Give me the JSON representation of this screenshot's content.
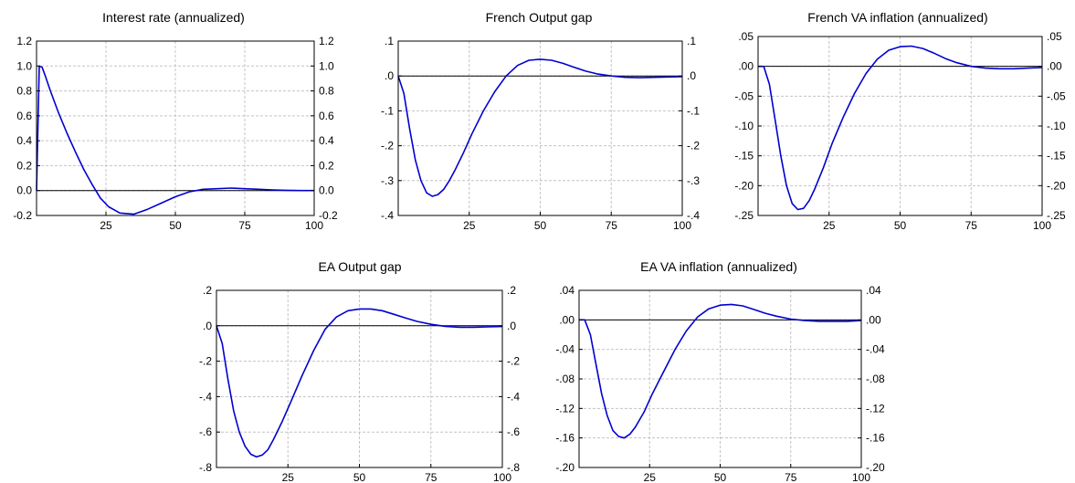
{
  "chart_data": [
    {
      "type": "line",
      "title": "Interest rate (annualized)",
      "xlim": [
        0,
        100
      ],
      "ylim": [
        -0.2,
        1.2
      ],
      "xticks": [
        25,
        50,
        75,
        100
      ],
      "xtick_labels": [
        "25",
        "50",
        "75",
        "100"
      ],
      "yticks": [
        -0.2,
        0.0,
        0.2,
        0.4,
        0.6,
        0.8,
        1.0,
        1.2
      ],
      "ytick_labels": [
        "-0.2",
        "0.0",
        "0.2",
        "0.4",
        "0.6",
        "0.8",
        "1.0",
        "1.2"
      ],
      "grid": true,
      "zero_line": true,
      "line_color": "#0000d0",
      "x": [
        0,
        1,
        2,
        3,
        5,
        8,
        11,
        14,
        17,
        20,
        23,
        26,
        30,
        35,
        40,
        45,
        50,
        55,
        60,
        65,
        70,
        75,
        80,
        85,
        90,
        95,
        100
      ],
      "y": [
        0.0,
        1.0,
        0.99,
        0.93,
        0.8,
        0.62,
        0.46,
        0.31,
        0.17,
        0.05,
        -0.06,
        -0.13,
        -0.18,
        -0.19,
        -0.15,
        -0.1,
        -0.05,
        -0.01,
        0.01,
        0.015,
        0.02,
        0.015,
        0.01,
        0.005,
        0.002,
        0.0,
        0.0
      ]
    },
    {
      "type": "line",
      "title": "French Output gap",
      "xlim": [
        0,
        100
      ],
      "ylim": [
        -0.4,
        0.1
      ],
      "xticks": [
        25,
        50,
        75,
        100
      ],
      "xtick_labels": [
        "25",
        "50",
        "75",
        "100"
      ],
      "yticks": [
        -0.4,
        -0.3,
        -0.2,
        -0.1,
        0.0,
        0.1
      ],
      "ytick_labels": [
        "-.4",
        "-.3",
        "-.2",
        "-.1",
        ".0",
        ".1"
      ],
      "grid": true,
      "zero_line": true,
      "line_color": "#0000d0",
      "x": [
        0,
        2,
        4,
        6,
        8,
        10,
        12,
        14,
        16,
        18,
        20,
        23,
        26,
        30,
        34,
        38,
        42,
        46,
        50,
        54,
        58,
        62,
        66,
        70,
        75,
        80,
        85,
        90,
        95,
        100
      ],
      "y": [
        0.0,
        -0.05,
        -0.15,
        -0.24,
        -0.3,
        -0.335,
        -0.345,
        -0.34,
        -0.325,
        -0.3,
        -0.27,
        -0.22,
        -0.165,
        -0.1,
        -0.045,
        0.0,
        0.03,
        0.045,
        0.048,
        0.045,
        0.036,
        0.025,
        0.014,
        0.006,
        0.0,
        -0.004,
        -0.005,
        -0.004,
        -0.003,
        -0.002
      ]
    },
    {
      "type": "line",
      "title": "French VA inflation (annualized)",
      "xlim": [
        0,
        100
      ],
      "ylim": [
        -0.25,
        0.05
      ],
      "xticks": [
        25,
        50,
        75,
        100
      ],
      "xtick_labels": [
        "25",
        "50",
        "75",
        "100"
      ],
      "yticks": [
        -0.25,
        -0.2,
        -0.15,
        -0.1,
        -0.05,
        0.0,
        0.05
      ],
      "ytick_labels": [
        "-.25",
        "-.20",
        "-.15",
        "-.10",
        "-.05",
        ".00",
        ".05"
      ],
      "grid": true,
      "zero_line": true,
      "line_color": "#0000d0",
      "x": [
        0,
        2,
        4,
        6,
        8,
        10,
        12,
        14,
        16,
        18,
        20,
        23,
        26,
        30,
        34,
        38,
        42,
        46,
        50,
        54,
        58,
        62,
        66,
        70,
        75,
        80,
        85,
        90,
        95,
        100
      ],
      "y": [
        0.0,
        0.0,
        -0.03,
        -0.09,
        -0.15,
        -0.2,
        -0.23,
        -0.24,
        -0.238,
        -0.225,
        -0.205,
        -0.17,
        -0.13,
        -0.085,
        -0.045,
        -0.012,
        0.012,
        0.027,
        0.033,
        0.034,
        0.03,
        0.022,
        0.013,
        0.006,
        0.0,
        -0.003,
        -0.004,
        -0.004,
        -0.003,
        -0.002
      ]
    },
    {
      "type": "line",
      "title": "EA Output gap",
      "xlim": [
        0,
        100
      ],
      "ylim": [
        -0.8,
        0.2
      ],
      "xticks": [
        25,
        50,
        75,
        100
      ],
      "xtick_labels": [
        "25",
        "50",
        "75",
        "100"
      ],
      "yticks": [
        -0.8,
        -0.6,
        -0.4,
        -0.2,
        0.0,
        0.2
      ],
      "ytick_labels": [
        "-.8",
        "-.6",
        "-.4",
        "-.2",
        ".0",
        ".2"
      ],
      "grid": true,
      "zero_line": true,
      "line_color": "#0000d0",
      "x": [
        0,
        2,
        4,
        6,
        8,
        10,
        12,
        14,
        16,
        18,
        20,
        23,
        26,
        30,
        34,
        38,
        42,
        46,
        50,
        54,
        58,
        62,
        66,
        70,
        75,
        80,
        85,
        90,
        95,
        100
      ],
      "y": [
        0.0,
        -0.1,
        -0.3,
        -0.48,
        -0.6,
        -0.68,
        -0.725,
        -0.74,
        -0.73,
        -0.7,
        -0.64,
        -0.54,
        -0.43,
        -0.28,
        -0.14,
        -0.02,
        0.05,
        0.085,
        0.095,
        0.095,
        0.085,
        0.065,
        0.045,
        0.025,
        0.008,
        -0.003,
        -0.008,
        -0.008,
        -0.006,
        -0.004
      ]
    },
    {
      "type": "line",
      "title": "EA VA inflation (annualized)",
      "xlim": [
        0,
        100
      ],
      "ylim": [
        -0.2,
        0.04
      ],
      "xticks": [
        25,
        50,
        75,
        100
      ],
      "xtick_labels": [
        "25",
        "50",
        "75",
        "100"
      ],
      "yticks": [
        -0.2,
        -0.16,
        -0.12,
        -0.08,
        -0.04,
        0.0,
        0.04
      ],
      "ytick_labels": [
        "-.20",
        "-.16",
        "-.12",
        "-.08",
        "-.04",
        ".00",
        ".04"
      ],
      "grid": true,
      "zero_line": true,
      "line_color": "#0000d0",
      "x": [
        0,
        2,
        4,
        6,
        8,
        10,
        12,
        14,
        16,
        18,
        20,
        23,
        26,
        30,
        34,
        38,
        42,
        46,
        50,
        54,
        58,
        62,
        66,
        70,
        75,
        80,
        85,
        90,
        95,
        100
      ],
      "y": [
        0.0,
        0.0,
        -0.02,
        -0.06,
        -0.1,
        -0.13,
        -0.15,
        -0.158,
        -0.16,
        -0.155,
        -0.145,
        -0.125,
        -0.1,
        -0.07,
        -0.04,
        -0.015,
        0.004,
        0.015,
        0.02,
        0.021,
        0.019,
        0.014,
        0.009,
        0.005,
        0.001,
        -0.001,
        -0.002,
        -0.002,
        -0.002,
        -0.001
      ]
    }
  ]
}
